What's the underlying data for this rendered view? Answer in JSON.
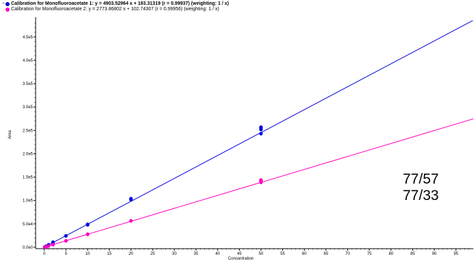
{
  "legend": {
    "expand_symbol": "−",
    "entries": [
      {
        "name": "Calibration for Monofluoroacetate 1",
        "text": "Calibration for Monofluoroacetate 1: y = 4903.52964 x + 183.31319 (r = 0.99937)  (weighting: 1 / x)",
        "color": "#0000e0",
        "bold": true
      },
      {
        "name": "Calibration for Monofluoroacetate 2",
        "text": "Calibration for Monofluoroacetate 2: y = 2773.86802 x + 102.74307 (r = 0.99956)  (weighting: 1 / x)",
        "color": "#ff00c0",
        "bold": false
      }
    ]
  },
  "annotations": [
    "77/57",
    "77/33"
  ],
  "chart_data": {
    "type": "scatter",
    "xlabel": "Concentration",
    "ylabel": "Area",
    "xlim": [
      -2,
      99
    ],
    "ylim": [
      -3000,
      485000
    ],
    "x_ticks": [
      0,
      5,
      10,
      15,
      20,
      25,
      30,
      35,
      40,
      45,
      50,
      55,
      60,
      65,
      70,
      75,
      80,
      85,
      90,
      95
    ],
    "y_ticks": [
      {
        "value": 0,
        "label": "0.0e0"
      },
      {
        "value": 50000,
        "label": "5.0e4"
      },
      {
        "value": 100000,
        "label": "1.0e5"
      },
      {
        "value": 150000,
        "label": "1.5e5"
      },
      {
        "value": 200000,
        "label": "2.0e5"
      },
      {
        "value": 250000,
        "label": "2.5e5"
      },
      {
        "value": 300000,
        "label": "3.0e5"
      },
      {
        "value": 350000,
        "label": "3.5e5"
      },
      {
        "value": 400000,
        "label": "4.0e5"
      },
      {
        "value": 450000,
        "label": "4.5e5"
      }
    ],
    "grid": false,
    "series": [
      {
        "name": "Calibration for Monofluoroacetate 1",
        "color": "#0000e0",
        "fit": {
          "slope": 4903.52964,
          "intercept": 183.31319
        },
        "points": [
          [
            0.1,
            700
          ],
          [
            0.25,
            1400
          ],
          [
            0.5,
            2600
          ],
          [
            1,
            5200
          ],
          [
            2,
            9800
          ],
          [
            2,
            11000
          ],
          [
            5,
            24500
          ],
          [
            10,
            48000
          ],
          [
            10,
            49000
          ],
          [
            20,
            102000
          ],
          [
            20,
            104000
          ],
          [
            50,
            243000
          ],
          [
            50,
            252000
          ],
          [
            50,
            255000
          ],
          [
            50,
            257000
          ]
        ]
      },
      {
        "name": "Calibration for Monofluoroacetate 2",
        "color": "#ff00c0",
        "fit": {
          "slope": 2773.86802,
          "intercept": 102.74307
        },
        "points": [
          [
            0.1,
            400
          ],
          [
            0.25,
            800
          ],
          [
            0.5,
            1500
          ],
          [
            1,
            2900
          ],
          [
            2,
            5600
          ],
          [
            5,
            13800
          ],
          [
            10,
            27500
          ],
          [
            10,
            28000
          ],
          [
            20,
            56500
          ],
          [
            50,
            139000
          ],
          [
            50,
            142000
          ],
          [
            50,
            144000
          ]
        ]
      }
    ]
  }
}
